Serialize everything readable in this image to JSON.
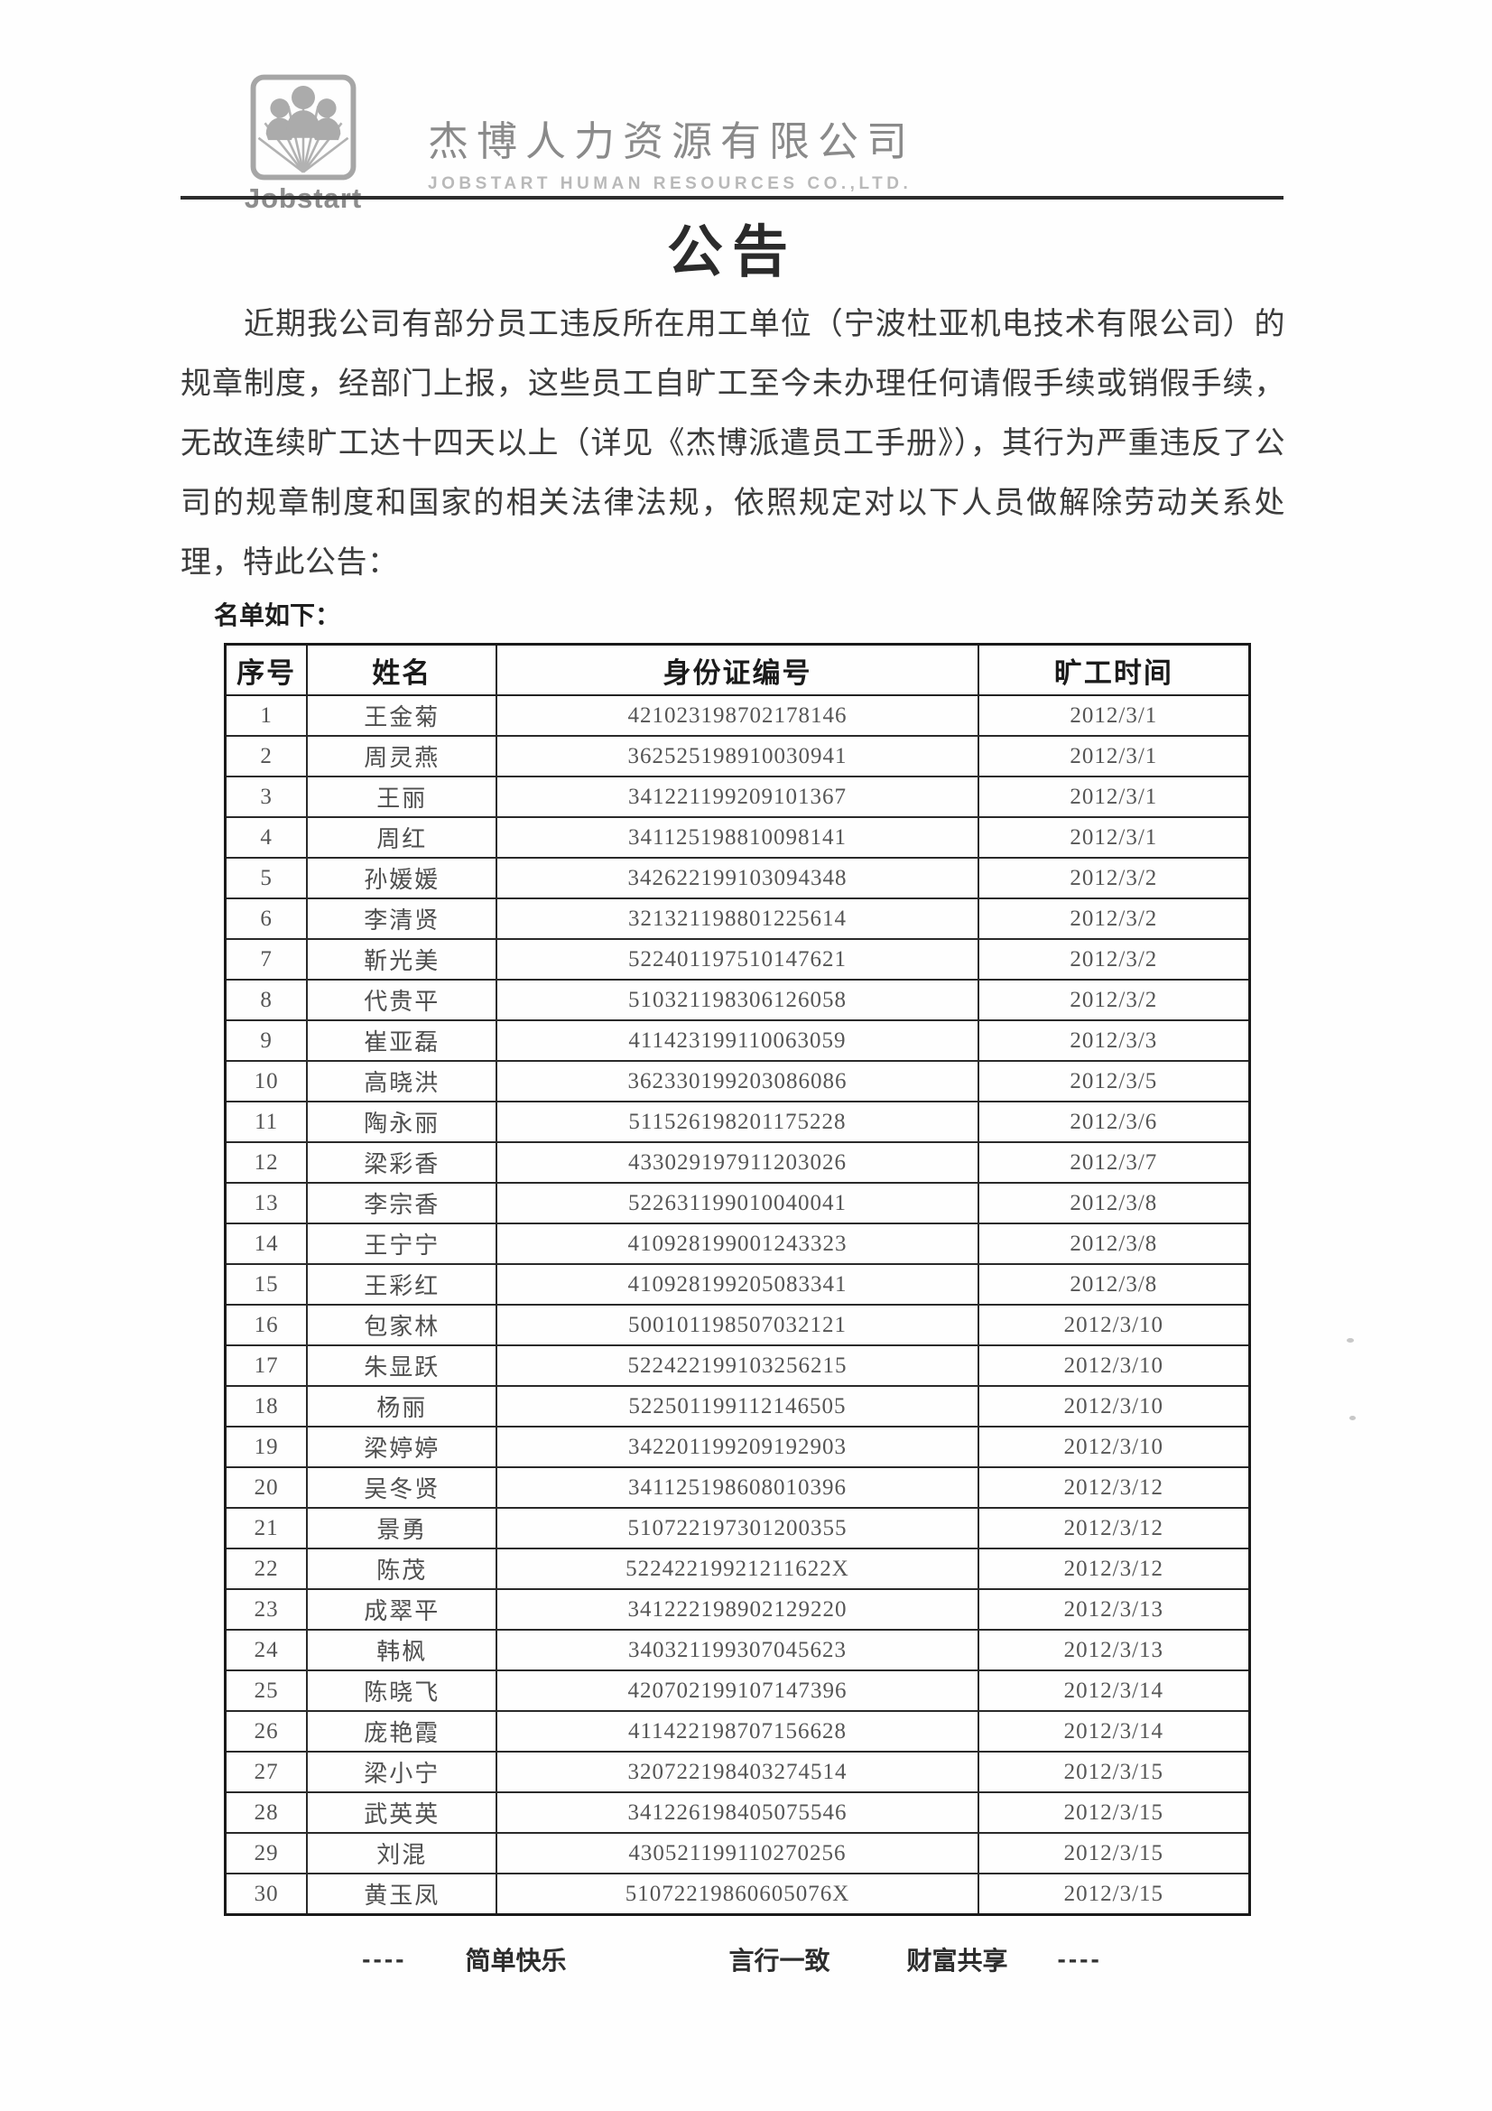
{
  "header": {
    "logo_text": "Jobstart",
    "company_cn": "杰博人力资源有限公司",
    "company_en": "JOBSTART HUMAN RESOURCES CO.,LTD."
  },
  "title": "公告",
  "paragraph": "近期我公司有部分员工违反所在用工单位（宁波杜亚机电技术有限公司）的规章制度，经部门上报，这些员工自旷工至今未办理任何请假手续或销假手续，无故连续旷工达十四天以上（详见《杰博派遣员工手册》），其行为严重违反了公司的规章制度和国家的相关法律法规，依照规定对以下人员做解除劳动关系处理，特此公告：",
  "list_label": "名单如下：",
  "table": {
    "headers": [
      "序号",
      "姓名",
      "身份证编号",
      "旷工时间"
    ],
    "rows": [
      [
        "1",
        "王金菊",
        "421023198702178146",
        "2012/3/1"
      ],
      [
        "2",
        "周灵燕",
        "362525198910030941",
        "2012/3/1"
      ],
      [
        "3",
        "王丽",
        "341221199209101367",
        "2012/3/1"
      ],
      [
        "4",
        "周红",
        "341125198810098141",
        "2012/3/1"
      ],
      [
        "5",
        "孙媛媛",
        "342622199103094348",
        "2012/3/2"
      ],
      [
        "6",
        "李清贤",
        "321321198801225614",
        "2012/3/2"
      ],
      [
        "7",
        "靳光美",
        "522401197510147621",
        "2012/3/2"
      ],
      [
        "8",
        "代贵平",
        "510321198306126058",
        "2012/3/2"
      ],
      [
        "9",
        "崔亚磊",
        "411423199110063059",
        "2012/3/3"
      ],
      [
        "10",
        "高晓洪",
        "362330199203086086",
        "2012/3/5"
      ],
      [
        "11",
        "陶永丽",
        "511526198201175228",
        "2012/3/6"
      ],
      [
        "12",
        "梁彩香",
        "433029197911203026",
        "2012/3/7"
      ],
      [
        "13",
        "李宗香",
        "522631199010040041",
        "2012/3/8"
      ],
      [
        "14",
        "王宁宁",
        "410928199001243323",
        "2012/3/8"
      ],
      [
        "15",
        "王彩红",
        "410928199205083341",
        "2012/3/8"
      ],
      [
        "16",
        "包家林",
        "500101198507032121",
        "2012/3/10"
      ],
      [
        "17",
        "朱显跃",
        "522422199103256215",
        "2012/3/10"
      ],
      [
        "18",
        "杨丽",
        "522501199112146505",
        "2012/3/10"
      ],
      [
        "19",
        "梁婷婷",
        "342201199209192903",
        "2012/3/10"
      ],
      [
        "20",
        "吴冬贤",
        "341125198608010396",
        "2012/3/12"
      ],
      [
        "21",
        "景勇",
        "510722197301200355",
        "2012/3/12"
      ],
      [
        "22",
        "陈茂",
        "52242219921211622X",
        "2012/3/12"
      ],
      [
        "23",
        "成翠平",
        "341222198902129220",
        "2012/3/13"
      ],
      [
        "24",
        "韩枫",
        "340321199307045623",
        "2012/3/13"
      ],
      [
        "25",
        "陈晓飞",
        "420702199107147396",
        "2012/3/14"
      ],
      [
        "26",
        "庞艳霞",
        "411422198707156628",
        "2012/3/14"
      ],
      [
        "27",
        "梁小宁",
        "320722198403274514",
        "2012/3/15"
      ],
      [
        "28",
        "武英英",
        "341226198405075546",
        "2012/3/15"
      ],
      [
        "29",
        "刘混",
        "430521199110270256",
        "2012/3/15"
      ],
      [
        "30",
        "黄玉凤",
        "51072219860605076X",
        "2012/3/15"
      ]
    ]
  },
  "footer": {
    "dash_left": "----",
    "slogans": [
      "简单快乐",
      "言行一致",
      "财富共享"
    ],
    "dash_right": "----"
  }
}
